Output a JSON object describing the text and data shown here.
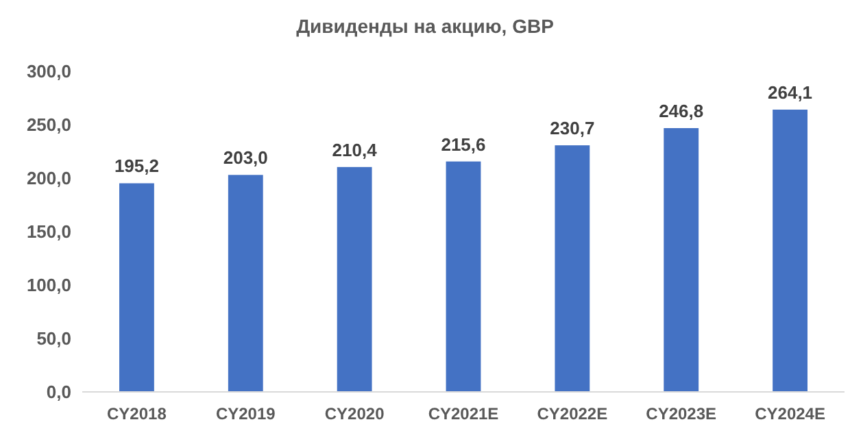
{
  "chart_data": {
    "type": "bar",
    "title": "Дивиденды на акцию, GBP",
    "categories": [
      "CY2018",
      "CY2019",
      "CY2020",
      "CY2021E",
      "CY2022E",
      "CY2023E",
      "CY2024E"
    ],
    "values": [
      195.2,
      203.0,
      210.4,
      215.6,
      230.7,
      246.8,
      264.1
    ],
    "value_labels": [
      "195,2",
      "203,0",
      "210,4",
      "215,6",
      "230,7",
      "246,8",
      "264,1"
    ],
    "color": "#4472c4",
    "ylim": [
      0,
      300
    ],
    "yticks": [
      {
        "value": 0,
        "label": "0,0"
      },
      {
        "value": 50,
        "label": "50,0"
      },
      {
        "value": 100,
        "label": "100,0"
      },
      {
        "value": 150,
        "label": "150,0"
      },
      {
        "value": 200,
        "label": "200,0"
      },
      {
        "value": 250,
        "label": "250,0"
      },
      {
        "value": 300,
        "label": "300,0"
      }
    ],
    "grid": false
  }
}
